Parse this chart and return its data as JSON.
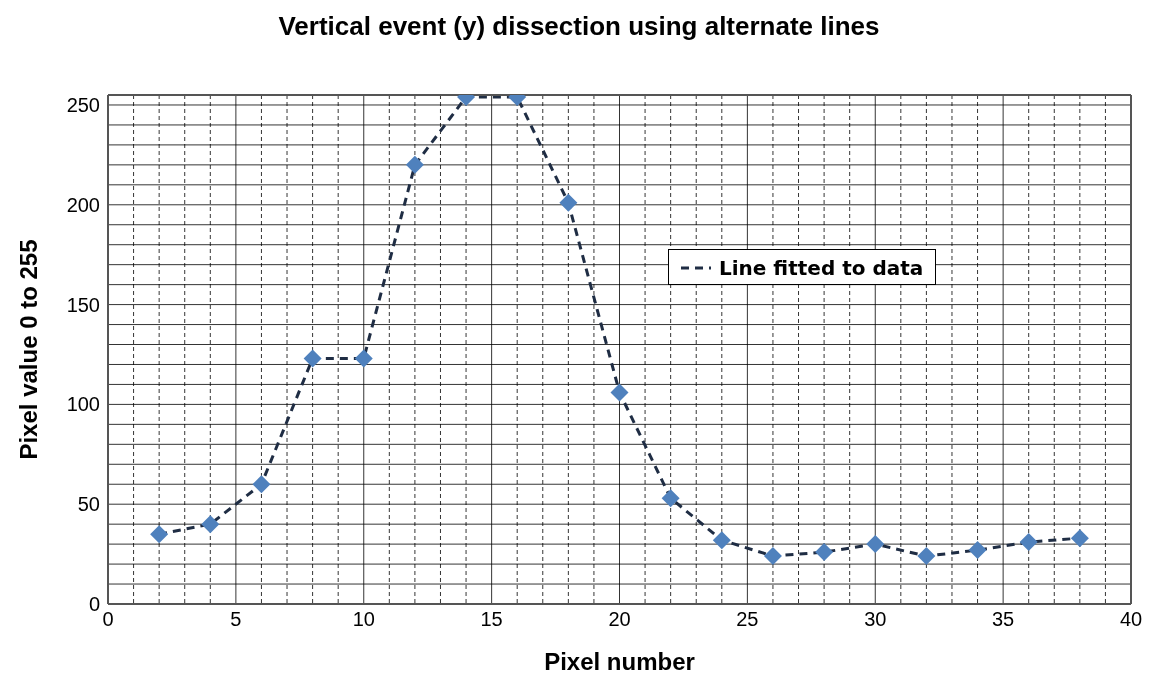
{
  "chart_data": {
    "type": "line",
    "title": "Vertical event (y) dissection using alternate lines",
    "xlabel": "Pixel number",
    "ylabel": "Pixel value 0 to 255",
    "x": [
      2,
      4,
      6,
      8,
      10,
      12,
      14,
      16,
      18,
      20,
      22,
      24,
      26,
      28,
      30,
      32,
      34,
      36,
      38
    ],
    "series": [
      {
        "name": "Line fitted to data",
        "color": "#4f81bd",
        "values": [
          35,
          40,
          60,
          123,
          123,
          220,
          254,
          254,
          201,
          106,
          53,
          32,
          24,
          26,
          30,
          24,
          27,
          31,
          33
        ]
      }
    ],
    "xlim": [
      0,
      40
    ],
    "xticks": [
      0,
      5,
      10,
      15,
      20,
      25,
      30,
      35,
      40
    ],
    "ylim": [
      0,
      255
    ],
    "yticks": [
      0,
      50,
      100,
      150,
      200,
      250
    ],
    "grid": true,
    "legend": "right",
    "marker": "diamond",
    "line_style": "dashed"
  }
}
